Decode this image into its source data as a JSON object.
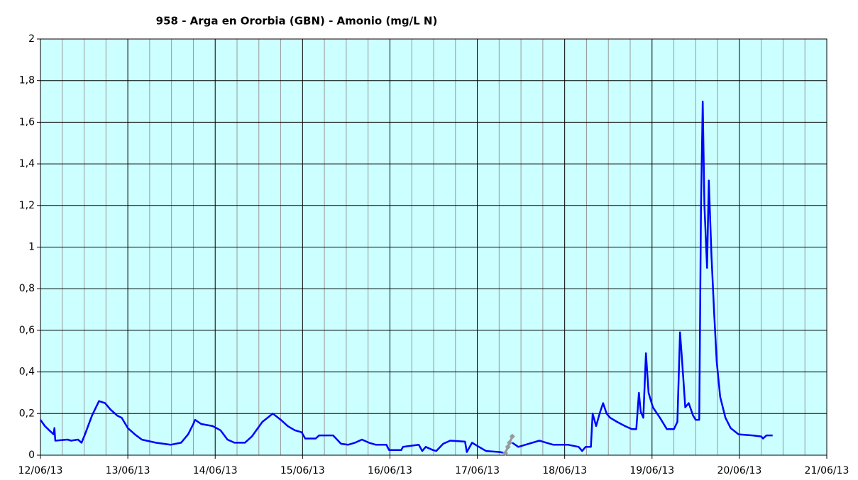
{
  "chart_data": {
    "type": "line",
    "title": "958 - Arga en Ororbia (GBN) - Amonio (mg/L N)",
    "xlim": [
      0,
      9
    ],
    "xticks": [
      {
        "value": 0,
        "label": "12/06/13"
      },
      {
        "value": 1,
        "label": "13/06/13"
      },
      {
        "value": 2,
        "label": "14/06/13"
      },
      {
        "value": 3,
        "label": "15/06/13"
      },
      {
        "value": 4,
        "label": "16/06/13"
      },
      {
        "value": 5,
        "label": "17/06/13"
      },
      {
        "value": 6,
        "label": "18/06/13"
      },
      {
        "value": 7,
        "label": "19/06/13"
      },
      {
        "value": 8,
        "label": "20/06/13"
      },
      {
        "value": 9,
        "label": "21/06/13"
      }
    ],
    "ylim": [
      0,
      2
    ],
    "yticks": [
      0,
      {
        "value": 0.2,
        "label": "0,2"
      },
      {
        "value": 0.4,
        "label": "0,4"
      },
      {
        "value": 0.6,
        "label": "0,6"
      },
      {
        "value": 0.8,
        "label": "0,8"
      },
      1,
      {
        "value": 1.2,
        "label": "1,2"
      },
      {
        "value": 1.4,
        "label": "1,4"
      },
      {
        "value": 1.6,
        "label": "1,6"
      },
      {
        "value": 1.8,
        "label": "1,8"
      },
      2
    ],
    "grid": true,
    "background": "#ccffff",
    "series": [
      {
        "color": "#0000ff",
        "x": [
          0,
          0.05,
          0.1,
          0.15,
          0.16,
          0.17,
          0.31,
          0.35,
          0.43,
          0.47,
          0.51,
          0.59,
          0.67,
          0.74,
          0.8,
          0.88,
          0.93,
          1.0,
          1.08,
          1.16,
          1.32,
          1.49,
          1.61,
          1.69,
          1.75,
          1.77,
          1.84,
          1.97,
          2.06,
          2.14,
          2.22,
          2.34,
          2.42,
          2.54,
          2.66,
          2.75,
          2.83,
          2.91,
          2.99,
          3.03,
          3.15,
          3.19,
          3.35,
          3.44,
          3.52,
          3.6,
          3.68,
          3.76,
          3.84,
          3.96,
          3.99,
          4.13,
          4.15,
          4.33,
          4.37,
          4.41,
          4.49,
          4.53,
          4.61,
          4.69,
          4.86,
          4.88,
          4.94,
          5.02,
          5.1,
          5.26,
          5.32,
          null,
          5.4,
          5.47,
          5.55,
          5.71,
          5.79,
          5.87,
          6.04,
          6.16,
          6.2,
          6.24,
          6.3,
          6.32,
          6.36,
          6.4,
          6.44,
          6.48,
          6.52,
          6.6,
          6.69,
          6.77,
          6.82,
          6.85,
          6.87,
          6.9,
          6.93,
          6.96,
          7.01,
          7.09,
          7.17,
          7.25,
          7.29,
          7.32,
          7.34,
          7.38,
          7.42,
          7.47,
          7.5,
          7.54,
          7.56,
          7.58,
          7.6,
          7.63,
          7.65,
          7.68,
          7.71,
          7.74,
          7.78,
          7.84,
          7.9,
          7.99,
          8.15,
          8.25,
          8.27,
          8.31,
          8.38
        ],
        "values": [
          0.17,
          0.14,
          0.12,
          0.1,
          0.13,
          0.07,
          0.075,
          0.07,
          0.075,
          0.06,
          0.1,
          0.19,
          0.26,
          0.25,
          0.22,
          0.19,
          0.18,
          0.13,
          0.1,
          0.075,
          0.06,
          0.05,
          0.06,
          0.1,
          0.15,
          0.17,
          0.15,
          0.14,
          0.12,
          0.075,
          0.06,
          0.06,
          0.09,
          0.16,
          0.2,
          0.17,
          0.14,
          0.12,
          0.11,
          0.08,
          0.08,
          0.095,
          0.095,
          0.055,
          0.05,
          0.06,
          0.075,
          0.06,
          0.05,
          0.05,
          0.025,
          0.025,
          0.04,
          0.05,
          0.02,
          0.04,
          0.025,
          0.02,
          0.055,
          0.07,
          0.065,
          0.015,
          0.06,
          0.04,
          0.02,
          0.015,
          0.01,
          null,
          0.06,
          0.04,
          0.05,
          0.07,
          0.06,
          0.05,
          0.05,
          0.04,
          0.02,
          0.04,
          0.04,
          0.2,
          0.14,
          0.2,
          0.25,
          0.2,
          0.18,
          0.16,
          0.14,
          0.125,
          0.125,
          0.3,
          0.21,
          0.18,
          0.49,
          0.3,
          0.23,
          0.18,
          0.125,
          0.125,
          0.16,
          0.59,
          0.48,
          0.23,
          0.25,
          0.19,
          0.17,
          0.17,
          1.17,
          1.7,
          1.2,
          0.9,
          1.32,
          0.96,
          0.69,
          0.45,
          0.28,
          0.18,
          0.13,
          0.1,
          0.095,
          0.09,
          0.08,
          0.095,
          0.095
        ]
      },
      {
        "color": "#999999",
        "marker": "diamond",
        "x": [
          5.32,
          5.35,
          5.37,
          5.4
        ],
        "values": [
          0.01,
          0.04,
          0.06,
          0.09
        ]
      }
    ]
  }
}
